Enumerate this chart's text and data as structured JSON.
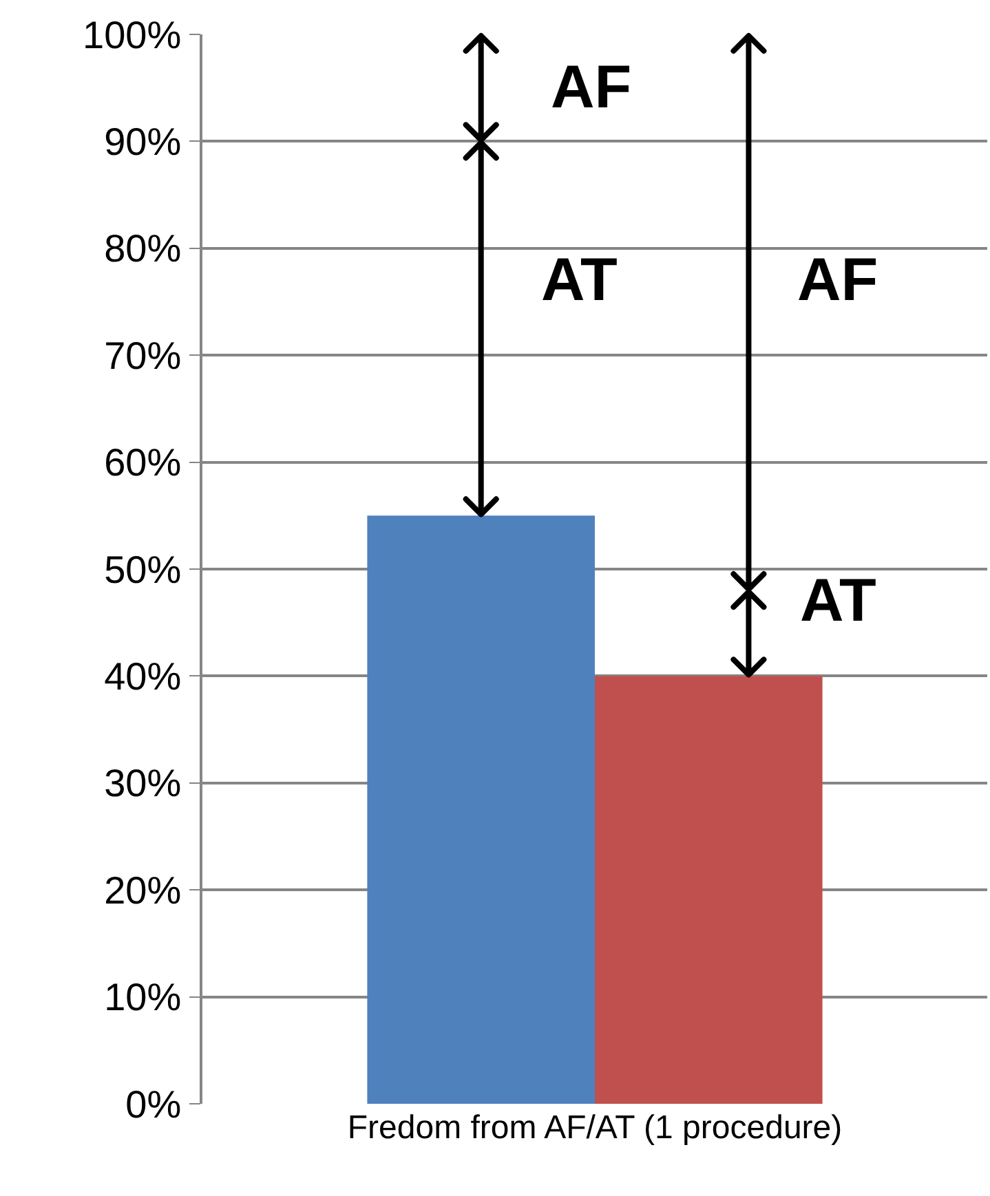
{
  "chart_data": {
    "type": "bar",
    "categories": [
      "Fredom from AF/AT (1 procedure)"
    ],
    "series": [
      {
        "color": "#4f81bd",
        "values": [
          55
        ]
      },
      {
        "color": "#c0504d",
        "values": [
          40
        ]
      }
    ],
    "ylim": [
      0,
      100
    ],
    "yticks": [
      {
        "value": 0,
        "label": "0%"
      },
      {
        "value": 10,
        "label": "10%"
      },
      {
        "value": 20,
        "label": "20%"
      },
      {
        "value": 30,
        "label": "30%"
      },
      {
        "value": 40,
        "label": "40%"
      },
      {
        "value": 50,
        "label": "50%"
      },
      {
        "value": 60,
        "label": "60%"
      },
      {
        "value": 70,
        "label": "70%"
      },
      {
        "value": 80,
        "label": "80%"
      },
      {
        "value": 90,
        "label": "90%"
      },
      {
        "value": 100,
        "label": "100%"
      }
    ],
    "grid": "y",
    "annotations": [
      "AF",
      "AT",
      "AF",
      "AT"
    ]
  }
}
